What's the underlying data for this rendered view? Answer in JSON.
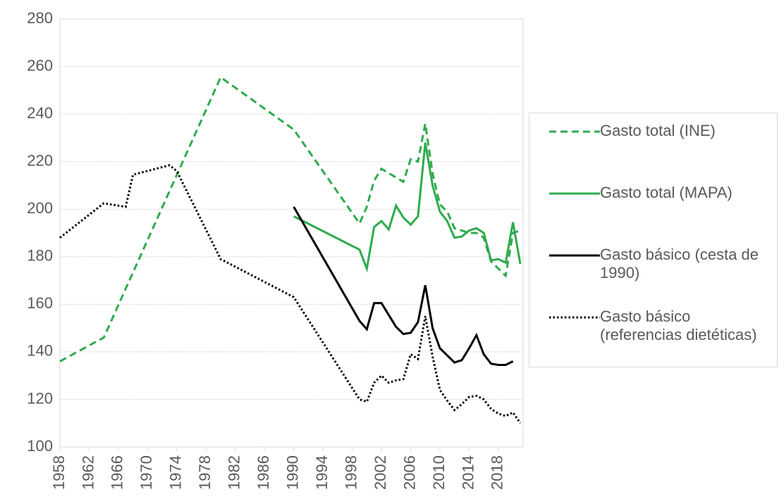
{
  "chart_data": {
    "type": "line",
    "xlim": [
      1958,
      2021
    ],
    "ylim": [
      100,
      280
    ],
    "xticks": [
      1958,
      1962,
      1966,
      1970,
      1974,
      1978,
      1982,
      1986,
      1990,
      1994,
      1998,
      2002,
      2006,
      2010,
      2014,
      2018
    ],
    "yticks": [
      100,
      120,
      140,
      160,
      180,
      200,
      220,
      240,
      260,
      280
    ],
    "grid": true,
    "legend": "right",
    "series": [
      {
        "name": "Gasto total (INE)",
        "color": "#2eab4d",
        "dash": "dashed",
        "x": [
          1958,
          1964,
          1980,
          1990,
          1999,
          2000,
          2001,
          2002,
          2005,
          2006,
          2007,
          2008,
          2009,
          2010,
          2011,
          2012,
          2014,
          2015,
          2016,
          2017,
          2018,
          2019,
          2020,
          2021
        ],
        "values": [
          136,
          146,
          255.5,
          233.5,
          194,
          201,
          212,
          217,
          211.5,
          221,
          220,
          236,
          215,
          202,
          199,
          192,
          190,
          190,
          188,
          178,
          175,
          172,
          190,
          191
        ]
      },
      {
        "name": "Gasto total (MAPA)",
        "color": "#2eab4d",
        "dash": "solid",
        "x": [
          1990,
          1999,
          2000,
          2001,
          2002,
          2003,
          2004,
          2005,
          2006,
          2007,
          2008,
          2009,
          2010,
          2011,
          2012,
          2013,
          2014,
          2015,
          2016,
          2017,
          2018,
          2019,
          2020,
          2021
        ],
        "values": [
          197,
          183,
          175,
          192.5,
          195,
          191.5,
          201.5,
          196.5,
          193.5,
          197,
          228,
          210,
          199,
          195,
          188,
          188.5,
          191,
          192,
          190,
          178.5,
          179,
          177.5,
          194.5,
          177
        ]
      },
      {
        "name": "Gasto básico (cesta de 1990)",
        "color": "#000000",
        "dash": "solid",
        "x": [
          1990,
          1999,
          2000,
          2001,
          2002,
          2003,
          2004,
          2005,
          2006,
          2007,
          2008,
          2009,
          2010,
          2011,
          2012,
          2013,
          2014,
          2015,
          2016,
          2017,
          2018,
          2019,
          2020
        ],
        "values": [
          201,
          153,
          149.5,
          160.5,
          160.5,
          155.5,
          150.5,
          147.5,
          148,
          152.5,
          168,
          150,
          141.5,
          138.5,
          135.5,
          136.5,
          141.5,
          147,
          139,
          135,
          134.5,
          134.5,
          136
        ]
      },
      {
        "name": "Gasto básico (referencias dietéticas)",
        "color": "#000000",
        "dash": "dotted",
        "x": [
          1958,
          1964,
          1967,
          1968,
          1973,
          1974,
          1980,
          1990,
          1999,
          2000,
          2001,
          2002,
          2003,
          2004,
          2005,
          2006,
          2007,
          2008,
          2009,
          2010,
          2011,
          2012,
          2013,
          2014,
          2015,
          2016,
          2017,
          2018,
          2019,
          2020,
          2021
        ],
        "values": [
          188,
          202.5,
          201,
          214.5,
          218.5,
          216,
          179,
          163,
          120,
          119,
          127,
          130,
          127,
          128,
          128.5,
          139,
          137,
          155,
          138,
          124,
          119.5,
          115.5,
          118,
          121,
          121.5,
          120,
          116,
          114,
          113,
          114.5,
          110
        ]
      }
    ]
  }
}
